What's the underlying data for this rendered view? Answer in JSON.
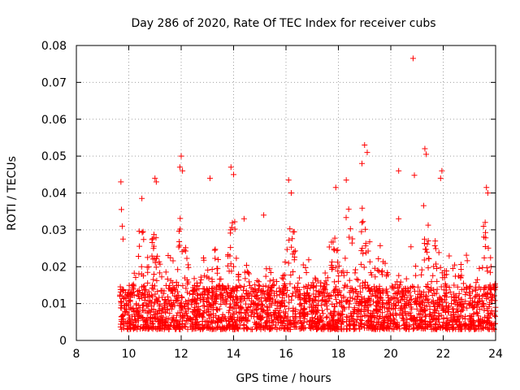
{
  "chart_data": {
    "type": "scatter",
    "title": "Day 286 of 2020, Rate Of TEC Index for receiver cubs",
    "xlabel": "GPS time / hours",
    "ylabel": "ROTI / TECUs",
    "xlim": [
      8,
      24
    ],
    "ylim": [
      0,
      0.08
    ],
    "xticks": [
      8,
      10,
      12,
      14,
      16,
      18,
      20,
      22,
      24
    ],
    "xtick_labels": [
      "8",
      "10",
      "12",
      "14",
      "16",
      "18",
      "20",
      "22",
      "24"
    ],
    "yticks": [
      0,
      0.01,
      0.02,
      0.03,
      0.04,
      0.05,
      0.06,
      0.07,
      0.08
    ],
    "ytick_labels": [
      "0",
      "0.01",
      "0.02",
      "0.03",
      "0.04",
      "0.05",
      "0.06",
      "0.07",
      "0.08"
    ],
    "grid": true,
    "marker": "+",
    "color": "#ff0000",
    "data_start_hour": 9.65,
    "data_end_hour": 24.0,
    "series": [
      {
        "name": "ROTI",
        "description": "dense scatter, mostly 0.003-0.02, spikes to ~0.05",
        "highlight_points": [
          {
            "x": 9.7,
            "y": 0.043
          },
          {
            "x": 9.72,
            "y": 0.0355
          },
          {
            "x": 9.75,
            "y": 0.031
          },
          {
            "x": 9.78,
            "y": 0.0275
          },
          {
            "x": 11.0,
            "y": 0.044
          },
          {
            "x": 11.05,
            "y": 0.043
          },
          {
            "x": 12.0,
            "y": 0.05
          },
          {
            "x": 11.95,
            "y": 0.047
          },
          {
            "x": 12.05,
            "y": 0.046
          },
          {
            "x": 13.1,
            "y": 0.044
          },
          {
            "x": 13.9,
            "y": 0.047
          },
          {
            "x": 14.0,
            "y": 0.045
          },
          {
            "x": 16.1,
            "y": 0.0435
          },
          {
            "x": 16.2,
            "y": 0.04
          },
          {
            "x": 18.3,
            "y": 0.0435
          },
          {
            "x": 18.9,
            "y": 0.048
          },
          {
            "x": 19.0,
            "y": 0.053
          },
          {
            "x": 19.1,
            "y": 0.051
          },
          {
            "x": 20.3,
            "y": 0.046
          },
          {
            "x": 20.3,
            "y": 0.033
          },
          {
            "x": 20.85,
            "y": 0.0765
          },
          {
            "x": 20.9,
            "y": 0.0448
          },
          {
            "x": 21.3,
            "y": 0.052
          },
          {
            "x": 21.35,
            "y": 0.0505
          },
          {
            "x": 21.95,
            "y": 0.046
          },
          {
            "x": 21.9,
            "y": 0.044
          },
          {
            "x": 23.65,
            "y": 0.0415
          },
          {
            "x": 23.7,
            "y": 0.04
          },
          {
            "x": 15.15,
            "y": 0.034
          },
          {
            "x": 14.4,
            "y": 0.033
          },
          {
            "x": 10.5,
            "y": 0.0385
          },
          {
            "x": 17.9,
            "y": 0.0415
          }
        ]
      }
    ]
  }
}
